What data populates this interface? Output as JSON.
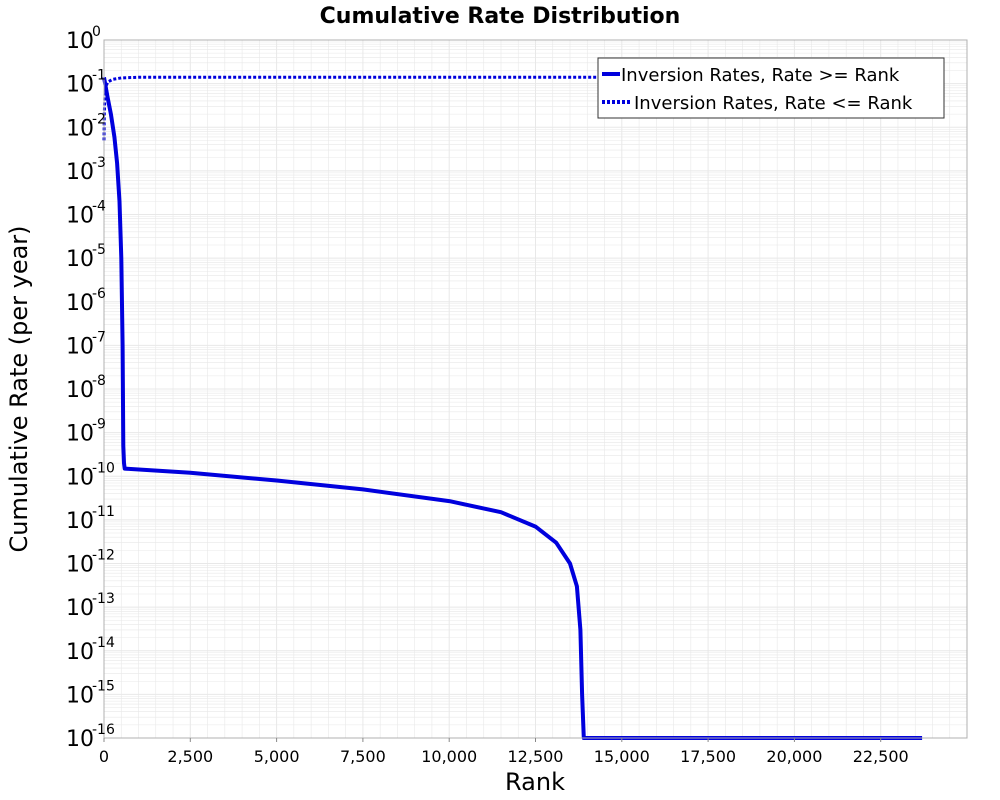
{
  "chart_data": {
    "type": "line",
    "title": "Cumulative Rate Distribution",
    "xlabel": "Rank",
    "ylabel": "Cumulative Rate (per year)",
    "xlim": [
      0,
      25000
    ],
    "ylim": [
      1e-16,
      1
    ],
    "yscale": "log",
    "x_ticks": [
      0,
      2500,
      5000,
      7500,
      10000,
      12500,
      15000,
      17500,
      20000,
      22500
    ],
    "x_tick_labels": [
      "0",
      "2,500",
      "5,000",
      "7,500",
      "10,000",
      "12,500",
      "15,000",
      "17,500",
      "20,000",
      "22,500"
    ],
    "y_tick_exponents": [
      0,
      -1,
      -2,
      -3,
      -4,
      -5,
      -6,
      -7,
      -8,
      -9,
      -10,
      -11,
      -12,
      -13,
      -14,
      -15,
      -16
    ],
    "y_tick_base": "10",
    "grid": true,
    "legend_position": "top-right",
    "colors": {
      "series": "#0000dd",
      "grid": "#e8e8e8",
      "frame": "#b0b0b0"
    },
    "series": [
      {
        "name": "Inversion Rates, Rate >= Rank",
        "style": "solid",
        "x": [
          0,
          100,
          200,
          300,
          380,
          450,
          500,
          540,
          560,
          580,
          600,
          2500,
          5000,
          7500,
          10000,
          11500,
          12500,
          13100,
          13500,
          13700,
          13800,
          13850,
          13900,
          13950,
          23700
        ],
        "y": [
          0.14,
          0.05,
          0.02,
          0.006,
          0.0015,
          0.0002,
          1e-05,
          1e-07,
          5e-10,
          2e-10,
          1.5e-10,
          1.2e-10,
          8e-11,
          5e-11,
          2.7e-11,
          1.5e-11,
          7e-12,
          3e-12,
          1e-12,
          3e-13,
          3e-14,
          1e-15,
          1e-16,
          1e-16,
          1e-16
        ]
      },
      {
        "name": "Inversion Rates, Rate <= Rank",
        "style": "dotted",
        "x": [
          0,
          10,
          30,
          60,
          120,
          250,
          500,
          1000,
          2000,
          5000,
          10000,
          13900,
          23700
        ],
        "y": [
          0.005,
          0.02,
          0.06,
          0.09,
          0.11,
          0.125,
          0.135,
          0.14,
          0.14,
          0.14,
          0.14,
          0.14,
          0.14
        ]
      }
    ]
  }
}
